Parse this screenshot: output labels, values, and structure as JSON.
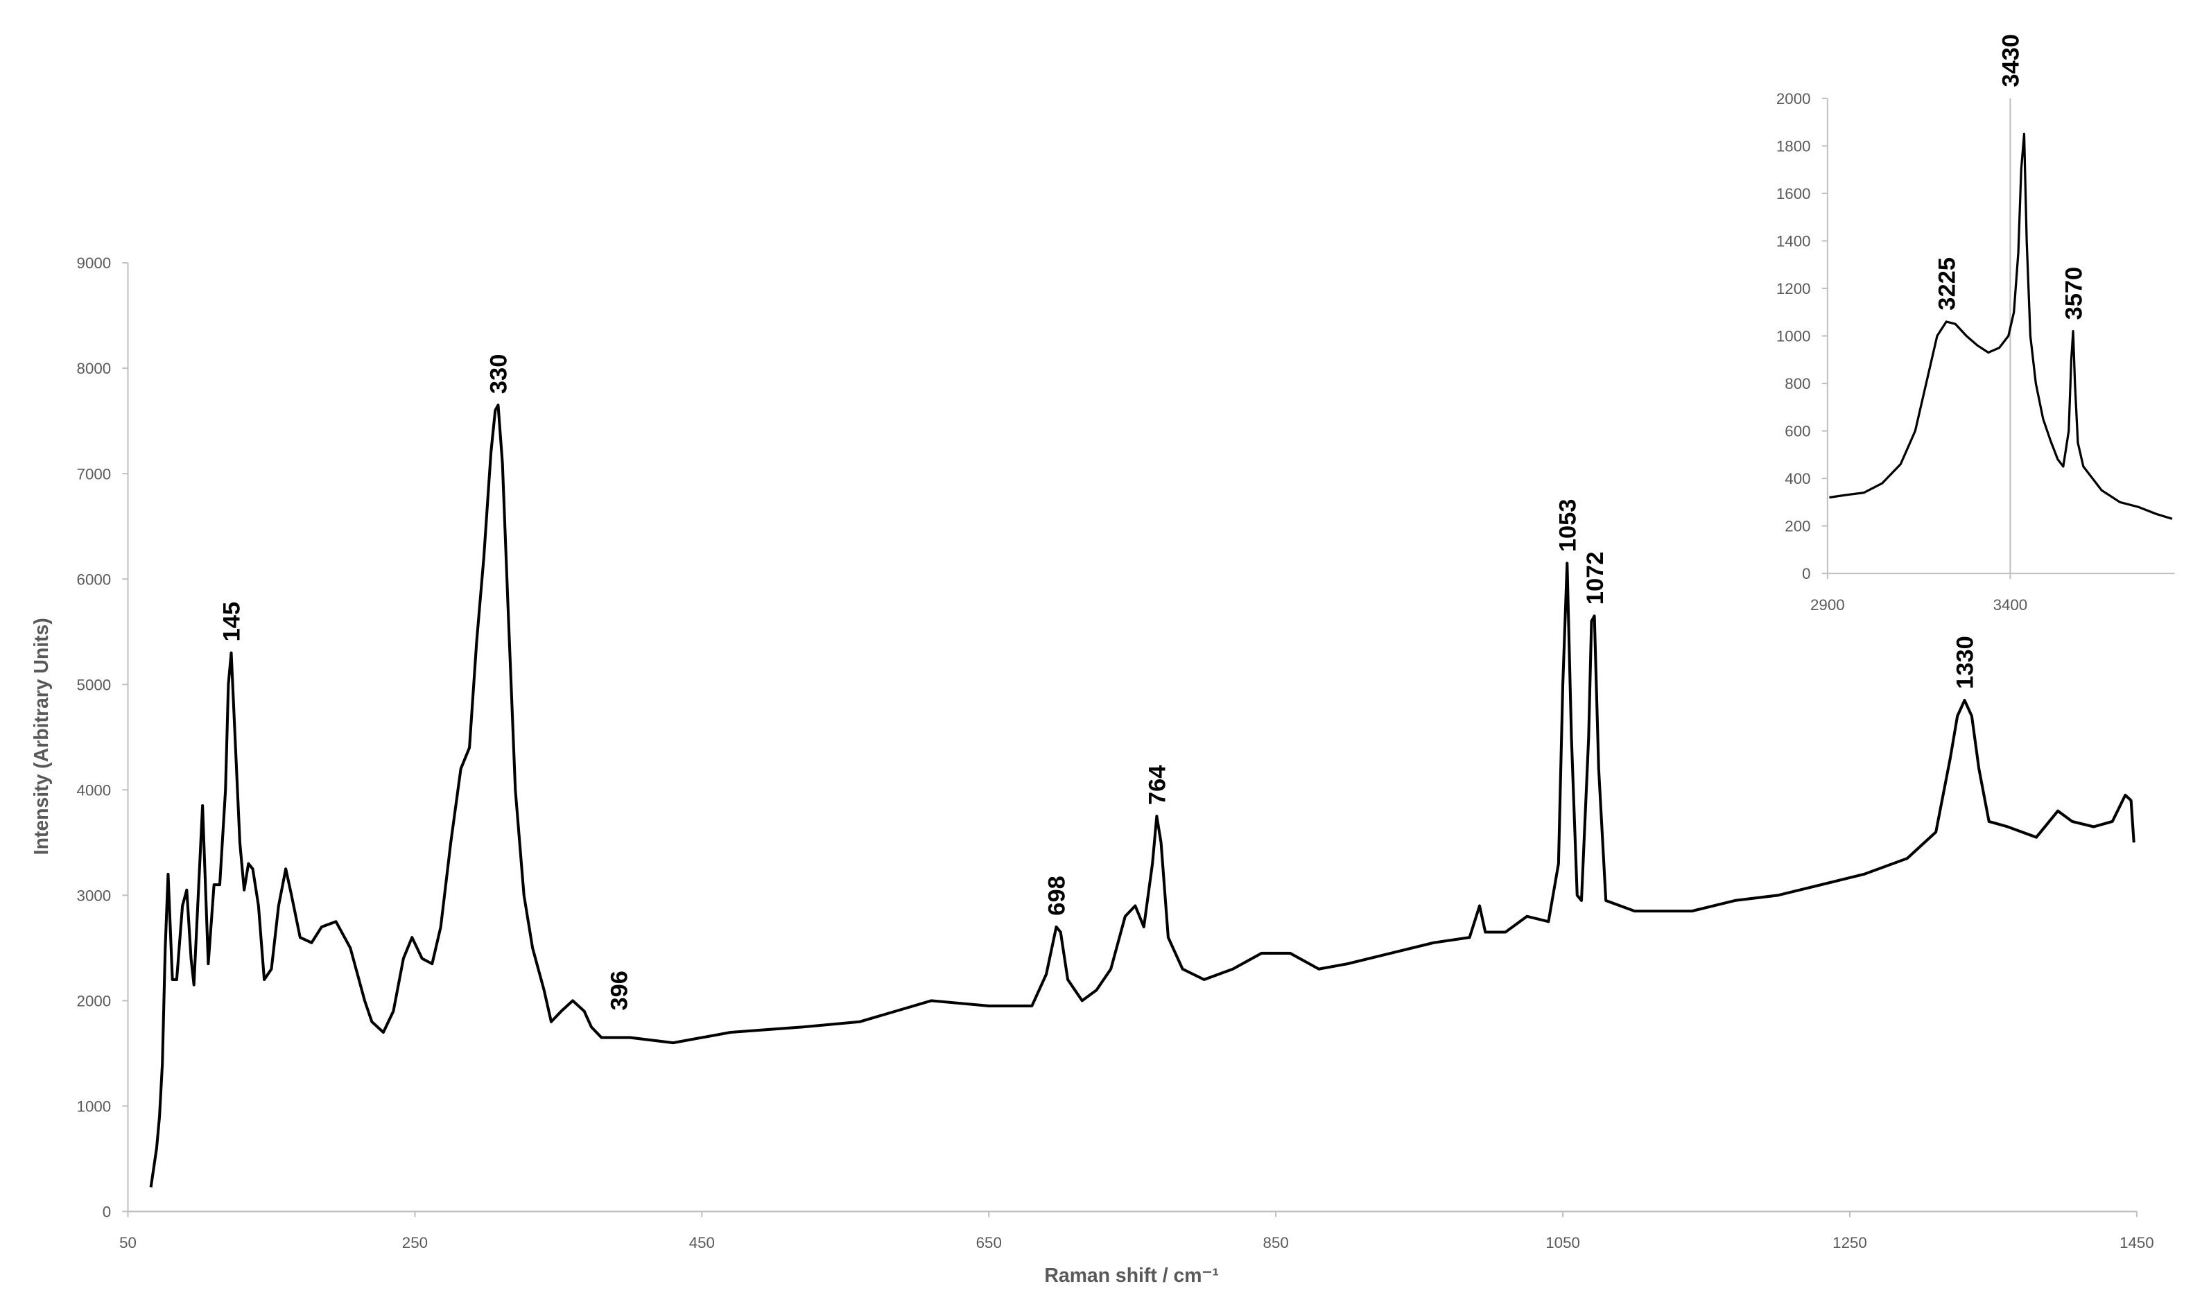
{
  "chart_data": [
    {
      "type": "line",
      "x_label": "Raman shift / cm⁻¹",
      "y_label": "Intensity (Arbitrary Units)",
      "xlim": [
        50,
        1450
      ],
      "xticks": [
        50,
        250,
        450,
        650,
        850,
        1050,
        1250,
        1450
      ],
      "ylim": [
        0,
        9000
      ],
      "yticks": [
        0,
        1000,
        2000,
        3000,
        4000,
        5000,
        6000,
        7000,
        8000,
        9000
      ],
      "color": "#000000",
      "x": [
        66,
        70,
        72,
        74,
        76,
        78,
        81,
        84,
        88,
        91,
        94,
        96,
        99,
        102,
        106,
        110,
        114,
        118,
        120,
        122,
        125,
        128,
        131,
        134,
        137,
        141,
        145,
        150,
        155,
        160,
        164,
        170,
        178,
        185,
        195,
        205,
        215,
        220,
        228,
        235,
        242,
        248,
        255,
        262,
        268,
        275,
        282,
        288,
        293,
        298,
        303,
        306,
        308,
        311,
        315,
        320,
        326,
        332,
        340,
        345,
        352,
        360,
        368,
        373,
        380,
        400,
        430,
        470,
        520,
        560,
        610,
        650,
        680,
        690,
        697,
        700,
        705,
        715,
        725,
        735,
        745,
        752,
        758,
        764,
        767,
        770,
        775,
        785,
        800,
        820,
        840,
        860,
        880,
        900,
        930,
        960,
        985,
        992,
        996,
        1010,
        1025,
        1040,
        1047,
        1050,
        1053,
        1056,
        1060,
        1063,
        1068,
        1070,
        1072,
        1075,
        1080,
        1100,
        1120,
        1140,
        1170,
        1200,
        1230,
        1260,
        1290,
        1310,
        1320,
        1325,
        1330,
        1335,
        1340,
        1347,
        1360,
        1380,
        1395,
        1405,
        1420,
        1433,
        1442,
        1446,
        1448
      ],
      "values": [
        230,
        600,
        900,
        1400,
        2500,
        3200,
        2200,
        2200,
        2900,
        3050,
        2400,
        2150,
        3000,
        3850,
        2350,
        3100,
        3100,
        4000,
        5000,
        5300,
        4400,
        3500,
        3050,
        3300,
        3250,
        2900,
        2200,
        2300,
        2900,
        3250,
        3000,
        2600,
        2550,
        2700,
        2750,
        2500,
        2000,
        1800,
        1700,
        1900,
        2400,
        2600,
        2400,
        2350,
        2700,
        3500,
        4200,
        4400,
        5400,
        6200,
        7200,
        7600,
        7650,
        7100,
        5700,
        4000,
        3000,
        2500,
        2100,
        1800,
        1900,
        2000,
        1900,
        1750,
        1650,
        1650,
        1600,
        1700,
        1750,
        1800,
        2000,
        1950,
        1950,
        2250,
        2700,
        2650,
        2200,
        2000,
        2100,
        2300,
        2800,
        2900,
        2700,
        3300,
        3750,
        3500,
        2600,
        2300,
        2200,
        2300,
        2450,
        2450,
        2300,
        2350,
        2450,
        2550,
        2600,
        2900,
        2650,
        2650,
        2800,
        2750,
        3300,
        5000,
        6150,
        4500,
        3000,
        2950,
        4500,
        5600,
        5650,
        4200,
        2950,
        2850,
        2850,
        2850,
        2950,
        3000,
        3100,
        3200,
        3350,
        3600,
        4300,
        4700,
        4850,
        4700,
        4200,
        3700,
        3650,
        3550,
        3800,
        3700,
        3650,
        3700,
        3950,
        3900,
        3500
      ],
      "annotations": [
        {
          "text": "145",
          "x": 122,
          "y": 5300
        },
        {
          "text": "330",
          "x": 308,
          "y": 7650
        },
        {
          "text": "396",
          "x": 392,
          "y": 1800
        },
        {
          "text": "698",
          "x": 697,
          "y": 2700
        },
        {
          "text": "764",
          "x": 767,
          "y": 3750
        },
        {
          "text": "1053",
          "x": 1053,
          "y": 6150
        },
        {
          "text": "1072",
          "x": 1072,
          "y": 5650
        },
        {
          "text": "1330",
          "x": 1330,
          "y": 4850
        }
      ]
    },
    {
      "type": "line",
      "xlim": [
        2900,
        3850
      ],
      "xticks": [
        2900,
        3400
      ],
      "ylim": [
        0,
        2000
      ],
      "yticks": [
        0,
        200,
        400,
        600,
        800,
        1000,
        1200,
        1400,
        1600,
        1800,
        2000
      ],
      "color": "#000000",
      "vline": 3400,
      "x": [
        2905,
        2950,
        3000,
        3050,
        3100,
        3140,
        3170,
        3200,
        3225,
        3250,
        3280,
        3310,
        3340,
        3370,
        3395,
        3410,
        3422,
        3430,
        3438,
        3445,
        3455,
        3470,
        3490,
        3510,
        3530,
        3545,
        3560,
        3567,
        3572,
        3577,
        3585,
        3600,
        3650,
        3700,
        3750,
        3800,
        3843
      ],
      "values": [
        320,
        330,
        340,
        380,
        460,
        600,
        800,
        1000,
        1060,
        1050,
        1000,
        960,
        930,
        950,
        1000,
        1100,
        1350,
        1700,
        1850,
        1400,
        1000,
        800,
        650,
        560,
        480,
        450,
        600,
        900,
        1020,
        800,
        550,
        450,
        350,
        300,
        280,
        250,
        230
      ],
      "annotations": [
        {
          "text": "3225",
          "x": 3225,
          "y": 1060
        },
        {
          "text": "3430",
          "x": 3400,
          "y": 2000
        },
        {
          "text": "3570",
          "x": 3572,
          "y": 1020
        }
      ]
    }
  ]
}
